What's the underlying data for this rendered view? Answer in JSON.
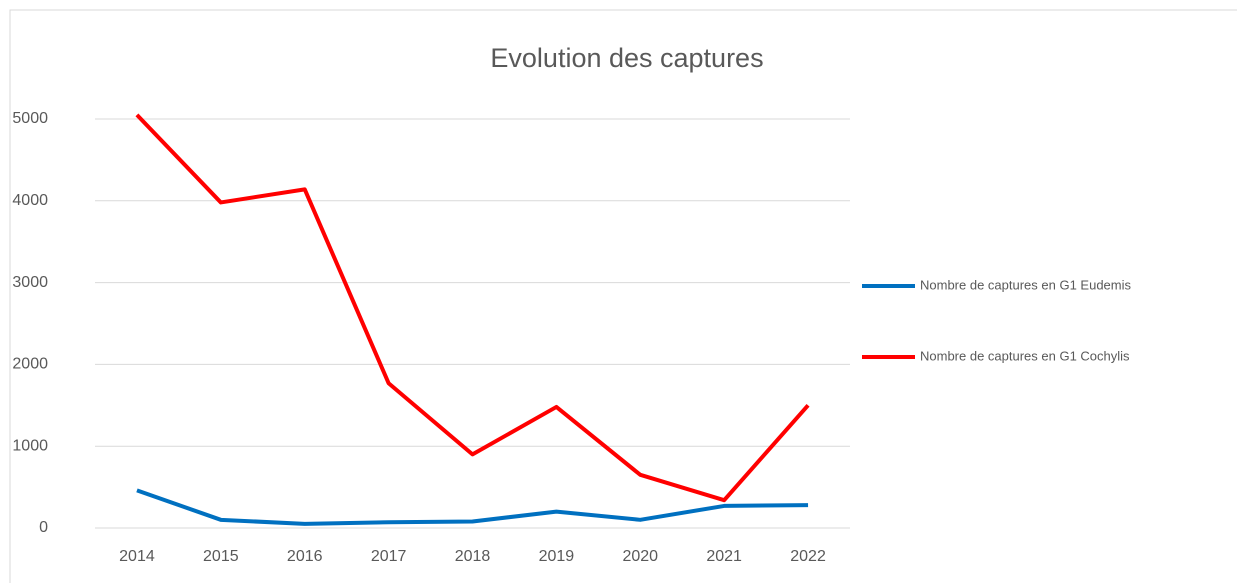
{
  "chart_data": {
    "type": "line",
    "title": "Evolution des captures",
    "categories": [
      "2014",
      "2015",
      "2016",
      "2017",
      "2018",
      "2019",
      "2020",
      "2021",
      "2022"
    ],
    "series": [
      {
        "name": "Nombre de captures en G1 Eudemis",
        "color": "#0070c0",
        "values": [
          460,
          100,
          50,
          70,
          80,
          200,
          100,
          270,
          280
        ]
      },
      {
        "name": "Nombre de captures en G1 Cochylis",
        "color": "#ff0000",
        "values": [
          5050,
          3980,
          4140,
          1770,
          900,
          1480,
          650,
          340,
          1500
        ]
      }
    ],
    "ylim": [
      0,
      5000
    ],
    "yticks": [
      0,
      1000,
      2000,
      3000,
      4000,
      5000
    ],
    "grid": true,
    "legend": "right"
  }
}
